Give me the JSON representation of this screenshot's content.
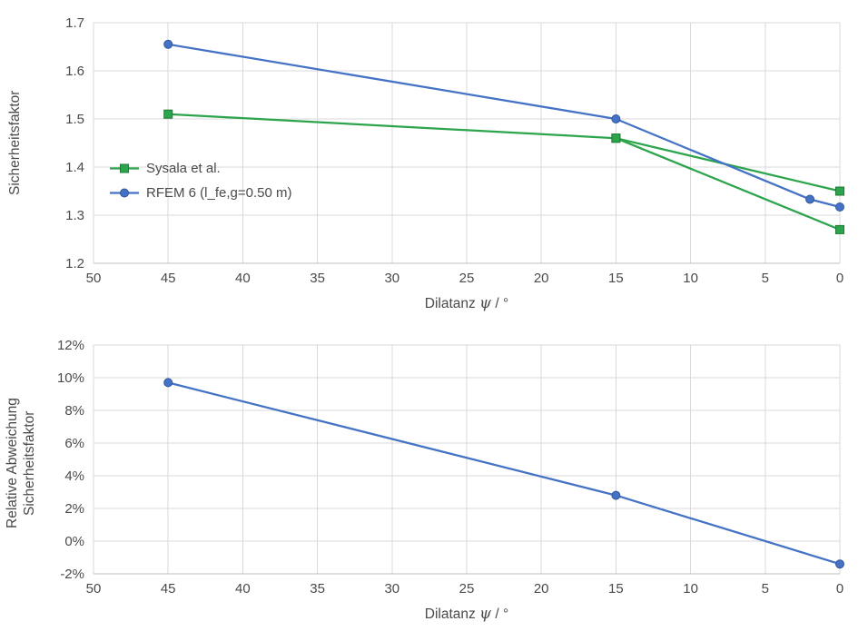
{
  "style": {
    "background": "#FFFFFF",
    "grid_color": "#D9D9D9",
    "axis_color": "#BFBFBF",
    "text_color": "#4A4A4A",
    "green": "#2CA44C",
    "blue": "#4472C4"
  },
  "chart_data": [
    {
      "type": "line",
      "title": "",
      "xlabel": {
        "prefix": "Dilatanz ",
        "symbol": "ψ",
        "suffix": " / °"
      },
      "ylabel": "Sicherheitsfaktor",
      "x_reversed": true,
      "xlim": [
        50,
        0
      ],
      "xticks": [
        50,
        45,
        40,
        35,
        30,
        25,
        20,
        15,
        10,
        5,
        0
      ],
      "ylim": [
        1.2,
        1.7
      ],
      "yticks": [
        1.2,
        1.3,
        1.4,
        1.5,
        1.6,
        1.7
      ],
      "y_tick_format": "number",
      "grid": true,
      "legend_position": "inside-left-middle",
      "series": [
        {
          "name": "Sysala et al.",
          "color": "#2CA44C",
          "edge": "#1F7A36",
          "marker": "square",
          "in_legend": true,
          "points": [
            [
              45,
              1.51
            ],
            [
              15,
              1.46
            ],
            [
              0,
              1.35
            ]
          ]
        },
        {
          "color": "#2CA44C",
          "edge": "#1F7A36",
          "marker": "square",
          "in_legend": false,
          "points": [
            [
              15,
              1.46
            ],
            [
              0,
              1.27
            ]
          ]
        },
        {
          "name": "RFEM 6 (l_fe,g=0.50 m)",
          "color": "#4472C4",
          "edge": "#31569B",
          "marker": "circle",
          "in_legend": true,
          "points": [
            [
              45,
              1.655
            ],
            [
              15,
              1.5
            ],
            [
              2,
              1.333
            ],
            [
              0,
              1.317
            ]
          ]
        }
      ]
    },
    {
      "type": "line",
      "title": "",
      "xlabel": {
        "prefix": "Dilatanz ",
        "symbol": "ψ",
        "suffix": " / °"
      },
      "ylabel_lines": [
        "Relative Abweichung",
        "Sicherheitsfaktor"
      ],
      "x_reversed": true,
      "xlim": [
        50,
        0
      ],
      "xticks": [
        50,
        45,
        40,
        35,
        30,
        25,
        20,
        15,
        10,
        5,
        0
      ],
      "ylim": [
        -0.02,
        0.12
      ],
      "yticks": [
        -0.02,
        0,
        0.02,
        0.04,
        0.06,
        0.08,
        0.1,
        0.12
      ],
      "y_tick_format": "percent",
      "grid": true,
      "legend_position": "none",
      "series": [
        {
          "name": "RFEM 6 (l_fe,g=0.50 m)",
          "color": "#4472C4",
          "edge": "#31569B",
          "marker": "circle",
          "in_legend": false,
          "points": [
            [
              45,
              0.097
            ],
            [
              15,
              0.028
            ],
            [
              0,
              -0.014
            ]
          ]
        }
      ]
    }
  ]
}
